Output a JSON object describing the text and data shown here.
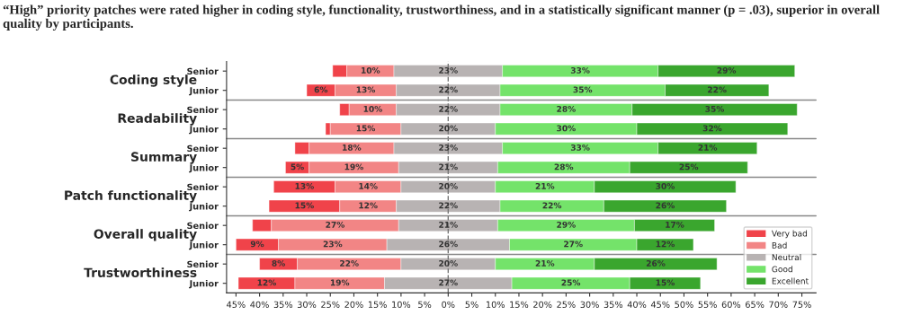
{
  "chart_data": {
    "type": "bar",
    "orientation": "horizontal",
    "title": "“High” priority patches were rated higher in coding style, functionality, trustworthiness, and in a statistically significant manner (p = .03), superior in overall quality by participants.",
    "categories": [
      "Senior",
      "Junior",
      "Senior",
      "Junior",
      "Senior",
      "Junior",
      "Senior",
      "Junior",
      "Senior",
      "Junior",
      "Senior",
      "Junior"
    ],
    "annotations": [
      "Coding style",
      "Readability",
      "Summary",
      "Patch functionality",
      "Overall quality",
      "Trustworthiness"
    ],
    "series": [
      {
        "name": "Very bad",
        "color": "#f0434a",
        "base": [
          -24.5,
          -30,
          -23,
          -26,
          -32.5,
          -34.5,
          -37,
          -38,
          -41.5,
          -45,
          -40,
          -44.5
        ],
        "values": [
          3,
          6,
          2,
          1,
          3,
          5,
          13,
          15,
          4,
          9,
          8,
          12
        ],
        "value_labels": [
          null,
          "6%",
          null,
          null,
          null,
          "5%",
          "13%",
          "15%",
          null,
          "9%",
          "8%",
          "12%"
        ]
      },
      {
        "name": "Bad",
        "color": "#f28585",
        "base": [
          -21.5,
          -24,
          -21,
          -25,
          -29.5,
          -29.5,
          -24,
          -23,
          -37.5,
          -36,
          -32,
          -32.5
        ],
        "values": [
          10,
          13,
          10,
          15,
          18,
          19,
          14,
          12,
          27,
          23,
          22,
          19
        ],
        "value_labels": [
          "10%",
          "13%",
          "10%",
          "15%",
          "18%",
          "19%",
          "14%",
          "12%",
          "27%",
          "23%",
          "22%",
          "19%"
        ]
      },
      {
        "name": "Neutral",
        "color": "#b8b3b3",
        "base": [
          -11.5,
          -11,
          -11,
          -10,
          -11.5,
          -10.5,
          -10,
          -11,
          -10.5,
          -13,
          -10,
          -13.5
        ],
        "values": [
          23,
          22,
          22,
          20,
          23,
          21,
          20,
          22,
          21,
          26,
          20,
          27
        ],
        "value_labels": [
          "23%",
          "22%",
          "22%",
          "20%",
          "23%",
          "21%",
          "20%",
          "22%",
          "21%",
          "26%",
          "20%",
          "27%"
        ]
      },
      {
        "name": "Good",
        "color": "#74e36a",
        "base": [
          11.5,
          11,
          11,
          10,
          11.5,
          10.5,
          10,
          11,
          10.5,
          13,
          10,
          13.5
        ],
        "values": [
          33,
          35,
          28,
          30,
          33,
          28,
          21,
          22,
          29,
          27,
          21,
          25
        ],
        "value_labels": [
          "33%",
          "35%",
          "28%",
          "30%",
          "33%",
          "28%",
          "21%",
          "22%",
          "29%",
          "27%",
          "21%",
          "25%"
        ]
      },
      {
        "name": "Excellent",
        "color": "#3aa62e",
        "base": [
          44.5,
          46,
          39,
          40,
          44.5,
          38.5,
          31,
          33,
          39.5,
          40,
          31,
          38.5
        ],
        "values": [
          29,
          22,
          35,
          32,
          21,
          25,
          30,
          26,
          17,
          12,
          26,
          15
        ],
        "value_labels": [
          "29%",
          "22%",
          "35%",
          "32%",
          "21%",
          "25%",
          "30%",
          "26%",
          "17%",
          "12%",
          "26%",
          "15%"
        ]
      }
    ],
    "xlim": [
      -47,
      78
    ],
    "xticks": [
      {
        "value": -45,
        "label": "45%"
      },
      {
        "value": -40,
        "label": "40%"
      },
      {
        "value": -35,
        "label": "35%"
      },
      {
        "value": -30,
        "label": "30%"
      },
      {
        "value": -25,
        "label": "25%"
      },
      {
        "value": -20,
        "label": "20%"
      },
      {
        "value": -15,
        "label": "15%"
      },
      {
        "value": -10,
        "label": "10%"
      },
      {
        "value": -5,
        "label": "5%"
      },
      {
        "value": 0,
        "label": "0%"
      },
      {
        "value": 5,
        "label": "5%"
      },
      {
        "value": 10,
        "label": "10%"
      },
      {
        "value": 15,
        "label": "15%"
      },
      {
        "value": 20,
        "label": "20%"
      },
      {
        "value": 25,
        "label": "25%"
      },
      {
        "value": 30,
        "label": "30%"
      },
      {
        "value": 35,
        "label": "35%"
      },
      {
        "value": 40,
        "label": "40%"
      },
      {
        "value": 45,
        "label": "45%"
      },
      {
        "value": 50,
        "label": "50%"
      },
      {
        "value": 55,
        "label": "55%"
      },
      {
        "value": 60,
        "label": "60%"
      },
      {
        "value": 65,
        "label": "65%"
      },
      {
        "value": 70,
        "label": "70%"
      },
      {
        "value": 75,
        "label": "75%"
      }
    ],
    "ref_lines": [
      {
        "axis": "x",
        "value": 0,
        "line_style": "dashed",
        "color": "#777777"
      }
    ],
    "grid": false,
    "legend": "bottom right"
  }
}
